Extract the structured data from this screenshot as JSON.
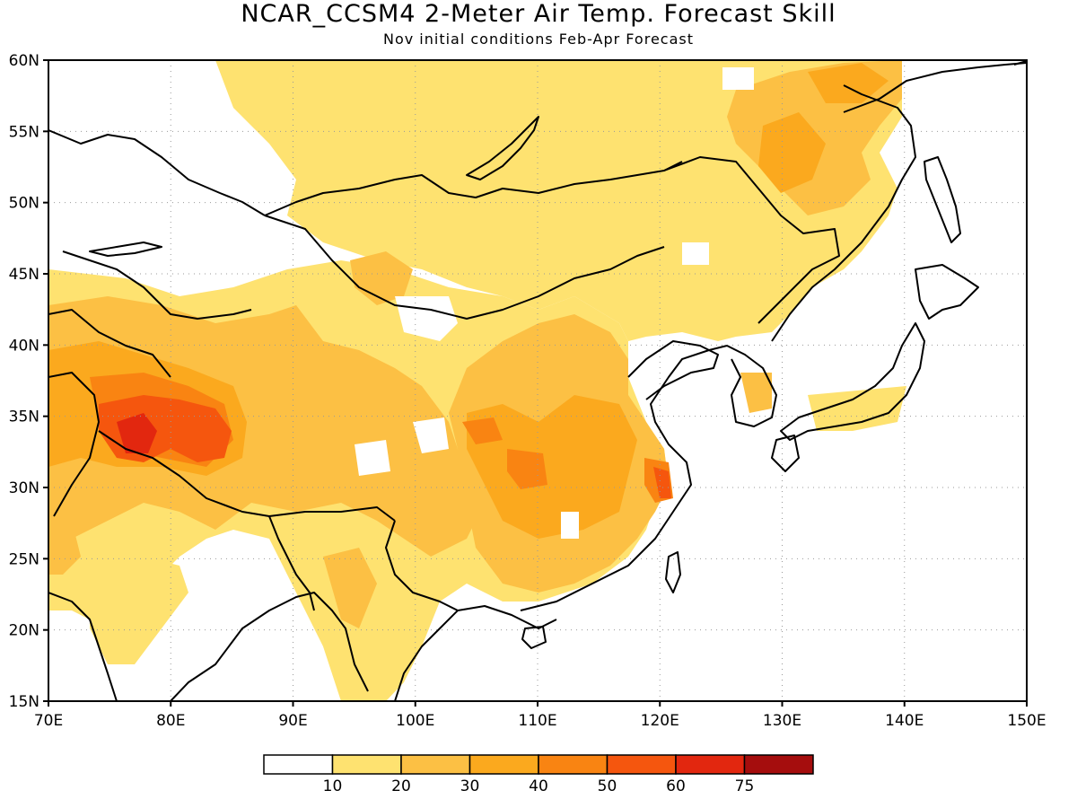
{
  "map": {
    "title": "NCAR_CCSM4 2-Meter Air Temp. Forecast Skill",
    "subtitle": "Nov initial conditions  Feb-Apr Forecast",
    "lon_labels": [
      "70E",
      "80E",
      "90E",
      "100E",
      "110E",
      "120E",
      "130E",
      "140E",
      "150E"
    ],
    "lat_labels": [
      "15N",
      "20N",
      "25N",
      "30N",
      "35N",
      "40N",
      "45N",
      "50N",
      "55N",
      "60N"
    ],
    "lon_range": [
      70,
      150
    ],
    "lat_range": [
      15,
      60
    ],
    "grid": true
  },
  "legend": {
    "tick_labels": [
      "10",
      "20",
      "30",
      "40",
      "50",
      "60",
      "75"
    ],
    "bins": [
      {
        "range": "<10",
        "color": "#ffffff"
      },
      {
        "range": "10-20",
        "color": "#fee270"
      },
      {
        "range": "20-30",
        "color": "#fcc044"
      },
      {
        "range": "30-40",
        "color": "#fba91e"
      },
      {
        "range": "40-50",
        "color": "#f98412"
      },
      {
        "range": "50-60",
        "color": "#f5560e"
      },
      {
        "range": "60-75",
        "color": "#e2270f"
      },
      {
        "range": ">75",
        "color": "#a50d0d"
      }
    ]
  }
}
